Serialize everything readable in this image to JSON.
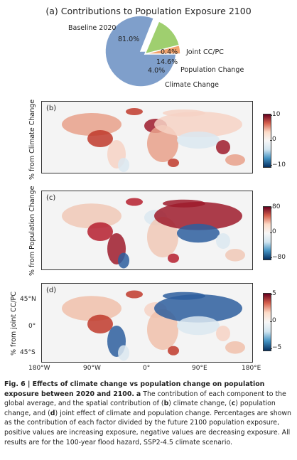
{
  "pie": {
    "title": "(a) Contributions to Population Exposure 2100",
    "slices": [
      {
        "label": "Baseline 2020",
        "value": 81.0,
        "pct": "81.0%",
        "color": "#7f9fcb"
      },
      {
        "label": "Joint CC/PC",
        "value": 0.4,
        "pct": "0.4%",
        "color": "#c9c9c9"
      },
      {
        "label": "Population Change",
        "value": 14.6,
        "pct": "14.6%",
        "color": "#9fcf6f"
      },
      {
        "label": "Climate Change",
        "value": 4.0,
        "pct": "4.0%",
        "color": "#f2a36e"
      }
    ]
  },
  "panels": [
    {
      "letter": "(b)",
      "ylabel": "% from Climate Change",
      "cbar_ticks": [
        "10",
        "0",
        "−10"
      ]
    },
    {
      "letter": "(c)",
      "ylabel": "% from Population Change",
      "cbar_ticks": [
        "80",
        "0",
        "−80"
      ]
    },
    {
      "letter": "(d)",
      "ylabel": "% from joint CC/PC",
      "cbar_ticks": [
        "5",
        "0",
        "−5"
      ]
    }
  ],
  "axes": {
    "lat_ticks": [
      "45°N",
      "0°",
      "45°S"
    ],
    "lon_ticks": [
      "180°W",
      "90°W",
      "0°",
      "90°E",
      "180°E"
    ]
  },
  "colors": {
    "positive": "#b2182b",
    "negative": "#2166ac",
    "neutral": "#f7f7f7"
  },
  "caption": {
    "fig": "Fig. 6 | Effects of climate change vs population change on population exposure between 2020 and 2100.",
    "a_label": "a",
    "text1": " The contribution of each component to the global average, and the spatial contribution of (",
    "b": "b",
    "text2": ") climate change, (",
    "c": "c",
    "text3": ") population change, and (",
    "d": "d",
    "text4": ") joint effect of climate and population change. Percentages are shown as the contribution of each factor divided by the future 2100 population exposure, positive values are increasing exposure, negative values are decreasing exposure. All results are for the 100-year flood hazard, SSP2-4.5 climate scenario."
  },
  "chart_data": [
    {
      "type": "pie",
      "title": "(a) Contributions to Population Exposure 2100",
      "categories": [
        "Baseline 2020",
        "Joint CC/PC",
        "Population Change",
        "Climate Change"
      ],
      "values": [
        81.0,
        0.4,
        14.6,
        4.0
      ]
    },
    {
      "type": "heatmap",
      "title": "(b)",
      "ylabel": "% from Climate Change",
      "clim": [
        -10,
        10
      ]
    },
    {
      "type": "heatmap",
      "title": "(c)",
      "ylabel": "% from Population Change",
      "clim": [
        -80,
        80
      ]
    },
    {
      "type": "heatmap",
      "title": "(d)",
      "ylabel": "% from joint CC/PC",
      "clim": [
        -5,
        5
      ],
      "xticks": [
        "180°W",
        "90°W",
        "0°",
        "90°E",
        "180°E"
      ],
      "yticks": [
        "45°N",
        "0°",
        "45°S"
      ]
    }
  ]
}
